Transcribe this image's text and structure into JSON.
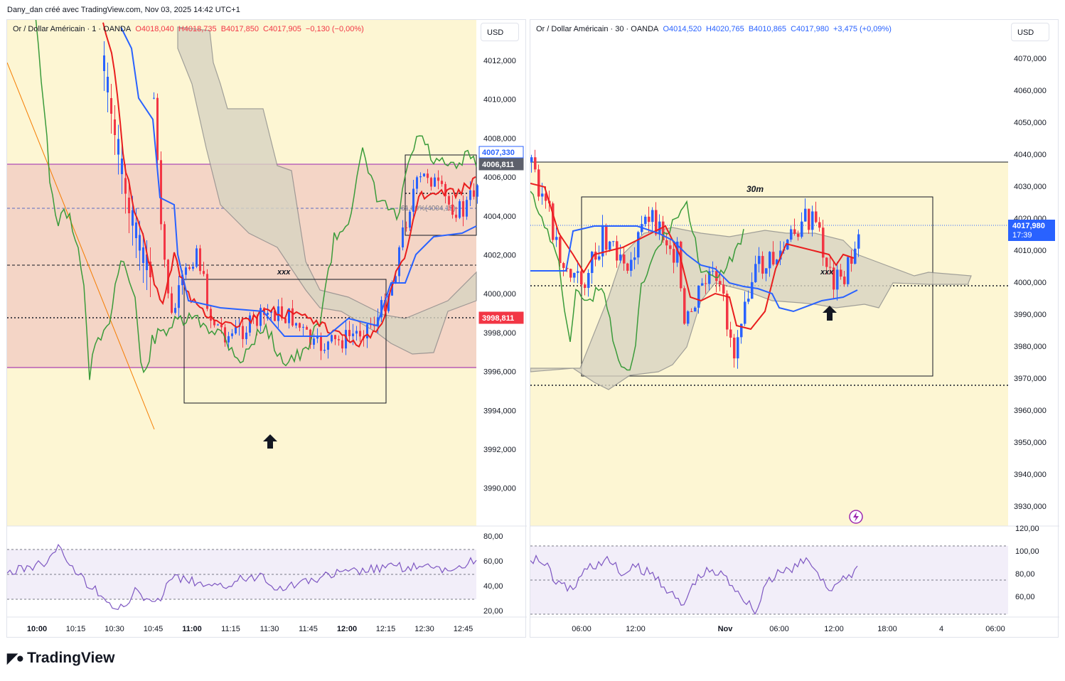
{
  "header": {
    "credit": "Dany_dan créé avec TradingView.com, Nov 03, 2025 14:42 UTC+1"
  },
  "footer": {
    "brand": "TradingView"
  },
  "colors": {
    "ohlc_down": "#f23645",
    "ohlc_up": "#2962ff",
    "cloud": "#d8d4c2",
    "rsi_line": "#7e57c2",
    "tenkan": "#e91e1e",
    "kijun": "#2962ff",
    "chikou": "#3a9b3a",
    "zone": "#fdf6d3",
    "pink_zone": "#f0c8c0"
  },
  "left": {
    "legend": {
      "symbol": "Or / Dollar Américain · 1 · OANDA",
      "o": "O4018,040",
      "h": "H4018,735",
      "b": "B4017,850",
      "c": "C4017,905",
      "chg": "−0,130 (−0,00%)"
    },
    "currency": "USD",
    "price_labels": [
      "4012,000",
      "4010,000",
      "4008,000",
      "4006,000",
      "4004,000",
      "4002,000",
      "4000,000",
      "3998,000",
      "3996,000",
      "3994,000",
      "3992,000",
      "3990,000"
    ],
    "tags": [
      {
        "text": "4007,330",
        "type": "outline"
      },
      {
        "text": "4006,811",
        "type": "grey"
      },
      {
        "text": "3998,811",
        "type": "red"
      }
    ],
    "annotation": "xxx",
    "fib_text": "61,80%(4004,15)",
    "rsi_labels": [
      "80,00",
      "60,00",
      "40,00",
      "20,00"
    ],
    "time_labels": [
      "10:00",
      "10:15",
      "10:30",
      "10:45",
      "11:00",
      "11:15",
      "11:30",
      "11:45",
      "12:00",
      "12:15",
      "12:30",
      "12:45"
    ],
    "bold_times": [
      "10:00",
      "11:00",
      "12:00"
    ]
  },
  "right": {
    "legend": {
      "symbol": "Or / Dollar Américain · 30 · OANDA",
      "o": "O4014,520",
      "h": "H4020,765",
      "b": "B4010,865",
      "c": "C4017,980",
      "chg": "+3,475 (+0,09%)"
    },
    "currency": "USD",
    "price_labels": [
      "4070,000",
      "4060,000",
      "4050,000",
      "4040,000",
      "4030,000",
      "4020,000",
      "4010,000",
      "4000,000",
      "3990,000",
      "3980,000",
      "3970,000",
      "3960,000",
      "3950,000",
      "3940,000",
      "3930,000"
    ],
    "tag": {
      "price": "4017,980",
      "countdown": "17:39"
    },
    "box_label": "30m",
    "annotation": "xxx",
    "rsi_labels": [
      "120,00",
      "100,00",
      "80,00",
      "60,00"
    ],
    "time_labels": [
      "06:00",
      "12:00",
      "Nov",
      "06:00",
      "12:00",
      "18:00",
      "4",
      "06:00"
    ],
    "bold_times": [
      "Nov"
    ]
  }
}
